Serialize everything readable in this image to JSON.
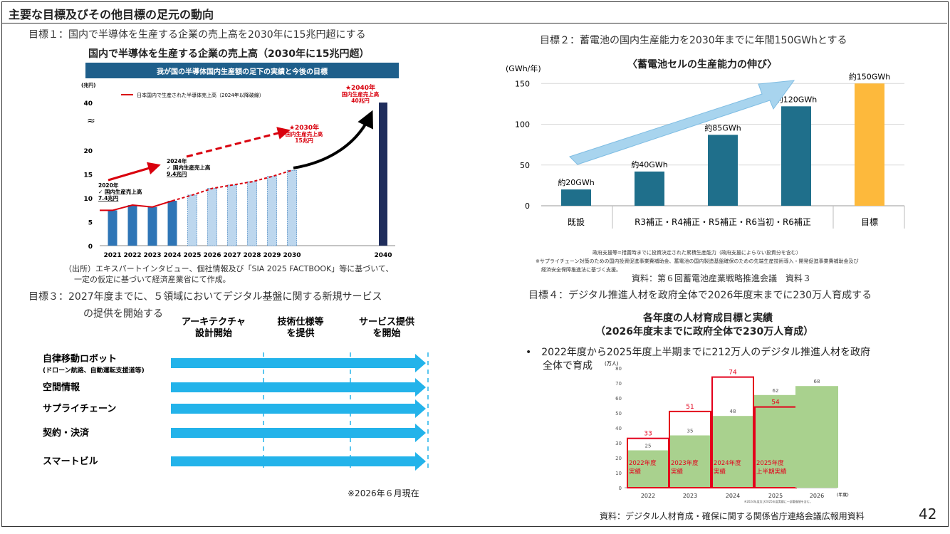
{
  "page": {
    "title": "主要な目標及びその他目標の足元の動向",
    "page_number": "42"
  },
  "colors": {
    "semi_bar_actual": "#2e75b6",
    "semi_bar_forecast": "#bdd7ee",
    "semi_bar_2040": "#1f2d5c",
    "semi_line": "#d9000d",
    "semi_banner": "#1f5f8b",
    "battery_bar": "#1f6f8b",
    "battery_target": "#fdb93c",
    "battery_arrow": "#a8d4ee",
    "digital_actual_fill": "#a9d18e",
    "digital_target_stroke": "#e3001b",
    "infra_arrow": "#23b3ea"
  },
  "goal1": {
    "caption": "目標１：国内で半導体を生産する企業の売上高を2030年に15兆円超にする",
    "chart_title": "国内で半導体を生産する企業の売上高（2030年に15兆円超）",
    "banner": "我が国の半導体国内生産額の足下の実績と今後の目標",
    "unit": "(兆円)",
    "legend": "日本国内で生産された半導体売上高（2024年以降破線）",
    "annot_2020": [
      "2020年",
      "✓ 国内生産売上高",
      "7.4兆円"
    ],
    "annot_2024": [
      "2024年",
      "✓ 国内生産売上高",
      "9.4兆円"
    ],
    "annot_2030": [
      "★2030年",
      "国内生産売上高",
      "15兆円"
    ],
    "annot_2040": [
      "★2040年",
      "国内生産売上高",
      "40兆円"
    ],
    "source_lines": [
      "（出所）エキスパートインタビュー、個社情報及び「SIA 2025 FACTBOOK」等に基づいて、",
      "一定の仮定に基づいて経済産業省にて作成。"
    ]
  },
  "goal2": {
    "caption": "目標２：蓄電池の国内生産能力を2030年までに年間150GWhとする",
    "chart_title": "〈蓄電池セルの生産能力の伸び〉",
    "unit": "(GWh/年)",
    "category_labels": [
      "既設",
      "R3補正・R4補正・R5補正・R6当初・R6補正",
      "目標"
    ],
    "value_labels": [
      "約20GWh",
      "約40GWh",
      "約85GWh",
      "約120GWh",
      "約150GWh"
    ],
    "note1": "政府支援等=措置時までに投資決定された累積生産能力（政府支援によらない投資分を含む）",
    "note2": "※サプライチェーン対策のための国内投資促進事業費補助金、蓄電池の国内製造基盤確保のための先端生産技術導入・開発促進事業費補助金及び",
    "note3": "経済安全保障推進法に基づく支援。",
    "source": "資料：第６回蓄電池産業戦略推進会議　資料３"
  },
  "goal3": {
    "caption_line1": "目標３：2027年度までに、５領域においてデジタル基盤に関する新規サービス",
    "caption_line2": "の提供を開始する",
    "phases": [
      [
        "アーキテクチャ",
        "設計開始"
      ],
      [
        "技術仕様等",
        "を提供"
      ],
      [
        "サービス提供",
        "を開始"
      ]
    ],
    "domains": [
      {
        "name": "自律移動ロボット",
        "sub": "(ドローン航路、自動運転支援道等)"
      },
      {
        "name": "空間情報",
        "sub": ""
      },
      {
        "name": "サプライチェーン",
        "sub": ""
      },
      {
        "name": "契約・決済",
        "sub": ""
      },
      {
        "name": "スマートビル",
        "sub": ""
      }
    ],
    "as_of": "※2026年６月現在"
  },
  "goal4": {
    "caption": "目標４：デジタル推進人材を政府全体で2026年度末までに230万人育成する",
    "title_line1": "各年度の人材育成目標と実績",
    "title_line2": "（2026年度末までに政府全体で230万人育成）",
    "bullet_line1": "•　2022年度から2025年度上半期までに212万人のデジタル推進人材を政府",
    "bullet_line2": "全体で育成",
    "unit": "(万人)",
    "x_unit": "(年度)",
    "bar_labels": [
      "2022年度\n実績",
      "2023年度\n実績",
      "2024年度\n実績",
      "2025年度\n上半期実績"
    ],
    "footnote": "※2024年度及び2025年度実績に一部重複値を含む。",
    "source": "資料：デジタル人材育成・確保に関する関係省庁連絡会議広報用資料"
  },
  "chart_data": [
    {
      "type": "bar",
      "title": "国内で半導体を生産する企業の売上高（2030年に15兆円超）",
      "categories": [
        "2021",
        "2022",
        "2023",
        "2024",
        "2025",
        "2026",
        "2027",
        "2028",
        "2029",
        "2030",
        "2040"
      ],
      "values": [
        7.4,
        8.5,
        8.1,
        9.4,
        10.6,
        12.0,
        12.7,
        13.4,
        14.5,
        15.8,
        40
      ],
      "line": {
        "x": [
          "2020",
          "2021",
          "2022",
          "2023",
          "2024",
          "2025",
          "2026",
          "2027",
          "2028",
          "2029",
          "2030"
        ],
        "values": [
          7.4,
          7.4,
          8.5,
          8.1,
          9.4,
          10.6,
          12.0,
          12.7,
          13.4,
          14.5,
          15.8
        ]
      },
      "ylabel": "(兆円)",
      "yticks": [
        0,
        5,
        10,
        15,
        20,
        40
      ],
      "ylim": [
        0,
        40
      ]
    },
    {
      "type": "bar",
      "title": "〈蓄電池セルの生産能力の伸び〉",
      "values": [
        20,
        42,
        87,
        122,
        150
      ],
      "value_labels": [
        "約20GWh",
        "約40GWh",
        "約85GWh",
        "約120GWh",
        "約150GWh"
      ],
      "ylabel": "(GWh/年)",
      "yticks": [
        0,
        50,
        100,
        150
      ],
      "ylim": [
        0,
        160
      ]
    },
    {
      "type": "bar",
      "title": "各年度の人材育成目標と実績",
      "categories": [
        "2022",
        "2023",
        "2024",
        "2025",
        "2026"
      ],
      "series": [
        {
          "values": [
            33,
            51,
            74,
            54,
            null
          ]
        },
        {
          "values": [
            25,
            35,
            48,
            62,
            68
          ]
        }
      ],
      "ylabel": "(万人)",
      "yticks": [
        0,
        10,
        20,
        30,
        40,
        50,
        60,
        70,
        80
      ],
      "ylim": [
        0,
        80
      ]
    }
  ]
}
